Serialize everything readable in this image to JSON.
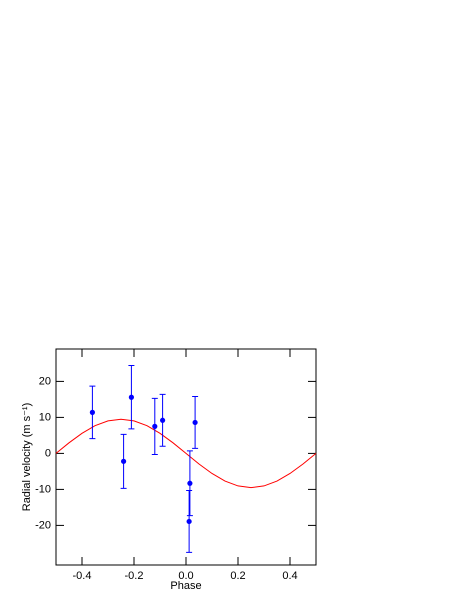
{
  "chart_data": {
    "type": "scatter",
    "x_label": "Phase",
    "y_label": "Radial velocity (m s⁻¹)",
    "xlim": [
      -0.5,
      0.5
    ],
    "ylim": [
      -31,
      29
    ],
    "xticks": [
      -0.4,
      -0.2,
      {
        "value": 0,
        "label": "0.0"
      },
      0.2,
      0.4
    ],
    "yticks": [
      -20,
      -10,
      0,
      10,
      20
    ],
    "points": {
      "color": "#0000ff",
      "x": [
        -0.36,
        -0.24,
        -0.21,
        -0.12,
        -0.09,
        0.015,
        0.012,
        0.035
      ],
      "values": [
        11.4,
        -2.2,
        15.6,
        7.5,
        9.2,
        -8.3,
        -18.9,
        8.6
      ],
      "errors": [
        7.3,
        7.5,
        8.8,
        7.8,
        7.2,
        9.0,
        8.6,
        7.2
      ]
    },
    "model": {
      "color": "#ff0000",
      "x": [
        -0.5,
        -0.45,
        -0.4,
        -0.35,
        -0.3,
        -0.25,
        -0.2,
        -0.15,
        -0.1,
        -0.05,
        0,
        0.05,
        0.1,
        0.15,
        0.2,
        0.25,
        0.3,
        0.35,
        0.4,
        0.45,
        0.5
      ],
      "values": [
        0,
        2.94,
        5.58,
        7.69,
        9.03,
        9.5,
        9.03,
        7.69,
        5.58,
        2.94,
        0,
        -2.94,
        -5.58,
        -7.69,
        -9.03,
        -9.5,
        -9.03,
        -7.69,
        -5.58,
        -2.94,
        0
      ]
    }
  }
}
